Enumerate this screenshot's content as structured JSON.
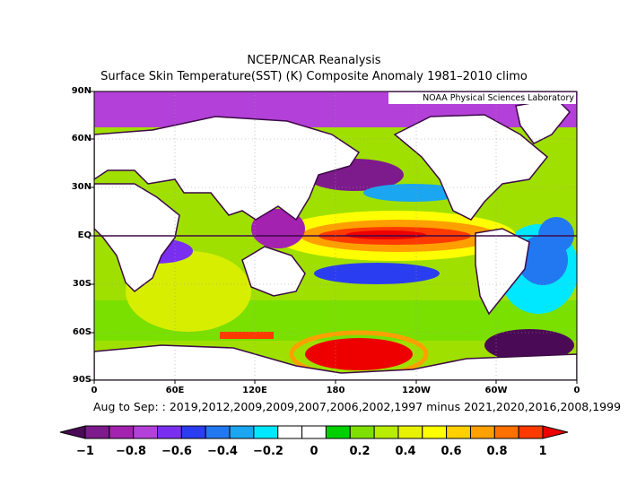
{
  "title": "NCEP/NCAR Reanalysis",
  "subtitle": "Surface Skin Temperature(SST) (K) Composite Anomaly 1981–2010 climo",
  "credit": "NOAA Physical Sciences Laboratory",
  "footer": "Aug to Sep: : 2019,2012,2009,2009,2007,2006,2002,1997 minus 2021,2020,2016,2008,1999",
  "axes": {
    "lat_labels": [
      "90N",
      "60N",
      "30N",
      "EQ",
      "30S",
      "60S",
      "90S"
    ],
    "lon_labels": [
      "0",
      "60E",
      "120E",
      "180",
      "120W",
      "60W",
      "0"
    ]
  },
  "colorbar": {
    "labels": [
      "−1",
      "−0.8",
      "−0.6",
      "−0.4",
      "−0.2",
      "0",
      "0.2",
      "0.4",
      "0.6",
      "0.8",
      "1"
    ],
    "colors": [
      "#4b0a55",
      "#7d1a8c",
      "#a322b0",
      "#b340d8",
      "#7a2ff0",
      "#2b3df0",
      "#2278f0",
      "#1aa6f0",
      "#00e8ff",
      "#ffffff",
      "#ffffff",
      "#00d000",
      "#7ee000",
      "#b8ec00",
      "#e8f200",
      "#ffff00",
      "#ffd000",
      "#ffa000",
      "#ff7000",
      "#ff3a00",
      "#ee0000"
    ]
  },
  "colors": {
    "coast": "#3c0a46",
    "equator": "#3c0a46"
  }
}
